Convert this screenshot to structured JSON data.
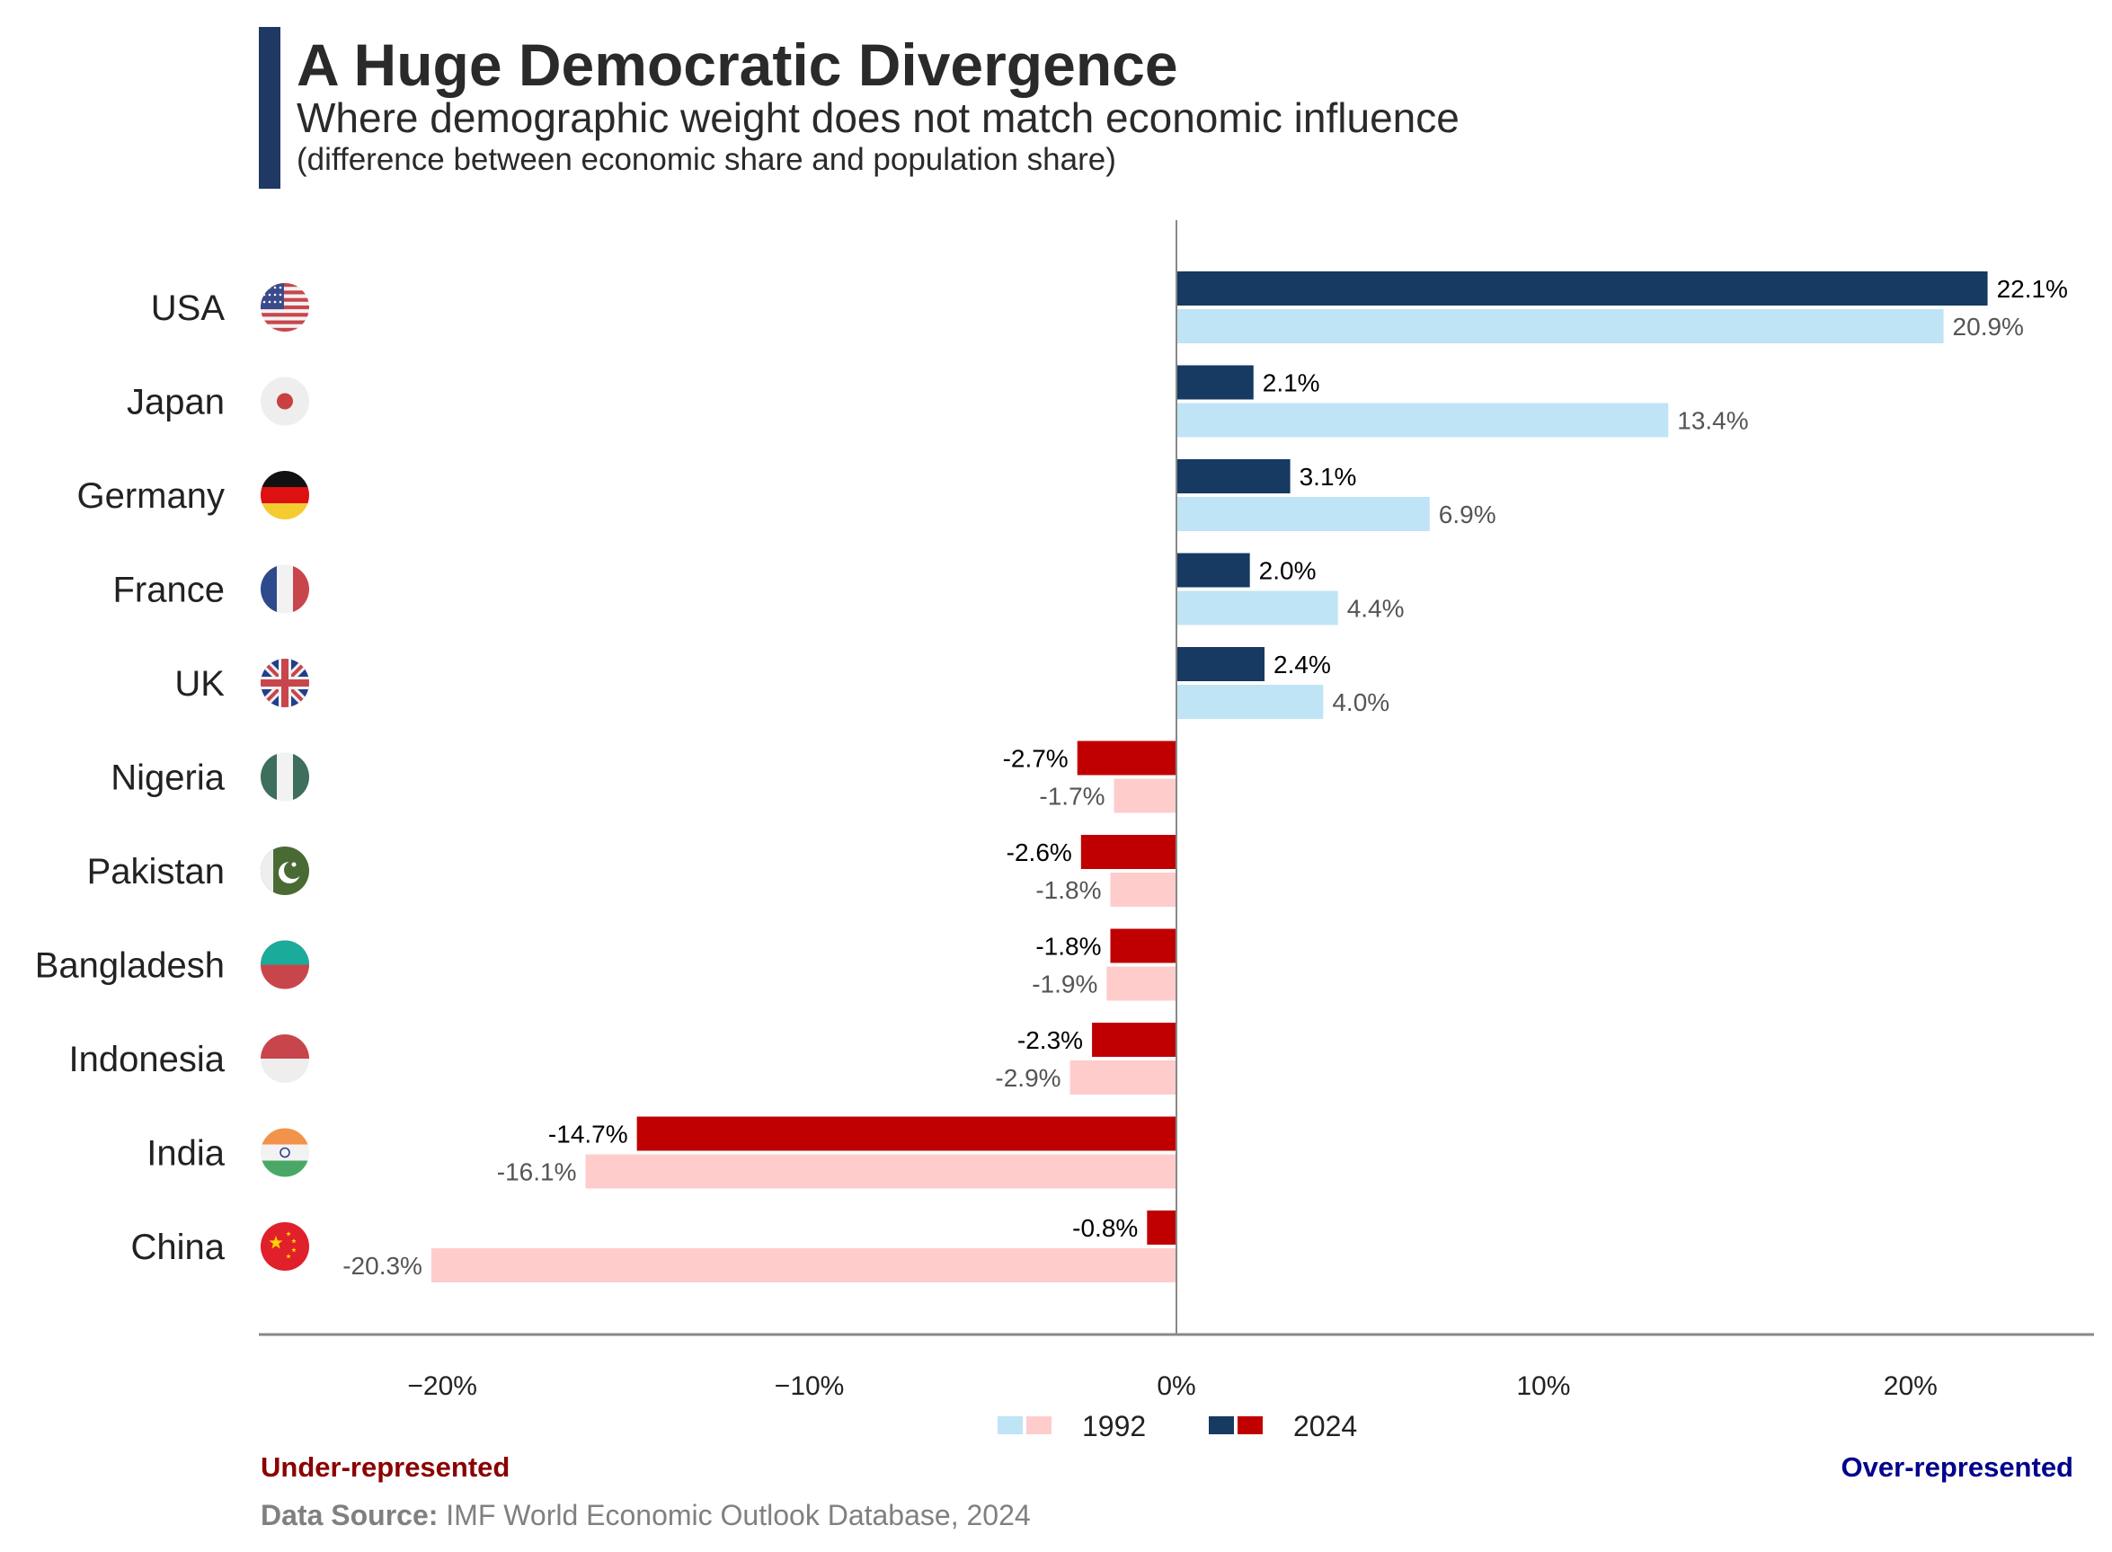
{
  "header": {
    "title": "A Huge Democratic Divergence",
    "subtitle": "Where demographic weight does not match economic influence",
    "note": "(difference between economic share and population share)"
  },
  "footer": {
    "under_label": "Under-represented",
    "over_label": "Over-represented",
    "source_label": "Data Source:",
    "source_text": " IMF World Economic Outlook Database, 2024"
  },
  "colors": {
    "positive_2024": "#163a62",
    "positive_1992": "#bfe4f5",
    "negative_2024": "#c00000",
    "negative_1992": "#ffcccc"
  },
  "chart_data": {
    "type": "bar",
    "orientation": "horizontal",
    "categories": [
      "USA",
      "Japan",
      "Germany",
      "France",
      "UK",
      "Nigeria",
      "Pakistan",
      "Bangladesh",
      "Indonesia",
      "India",
      "China"
    ],
    "series": [
      {
        "name": "2024",
        "values": [
          22.1,
          2.1,
          3.1,
          2.0,
          2.4,
          -2.7,
          -2.6,
          -1.8,
          -2.3,
          -14.7,
          -0.8
        ]
      },
      {
        "name": "1992",
        "values": [
          20.9,
          13.4,
          6.9,
          4.4,
          4.0,
          -1.7,
          -1.8,
          -1.9,
          -2.9,
          -16.1,
          -20.3
        ]
      }
    ],
    "x_ticks": [
      "−20%",
      "−10%",
      "0%",
      "10%",
      "20%"
    ],
    "xlim": [
      -25,
      25
    ],
    "grid": false,
    "legend_position": "bottom-center",
    "flags": [
      "us-flag-icon",
      "japan-flag-icon",
      "germany-flag-icon",
      "france-flag-icon",
      "uk-flag-icon",
      "nigeria-flag-icon",
      "pakistan-flag-icon",
      "bangladesh-flag-icon",
      "indonesia-flag-icon",
      "india-flag-icon",
      "china-flag-icon"
    ]
  }
}
